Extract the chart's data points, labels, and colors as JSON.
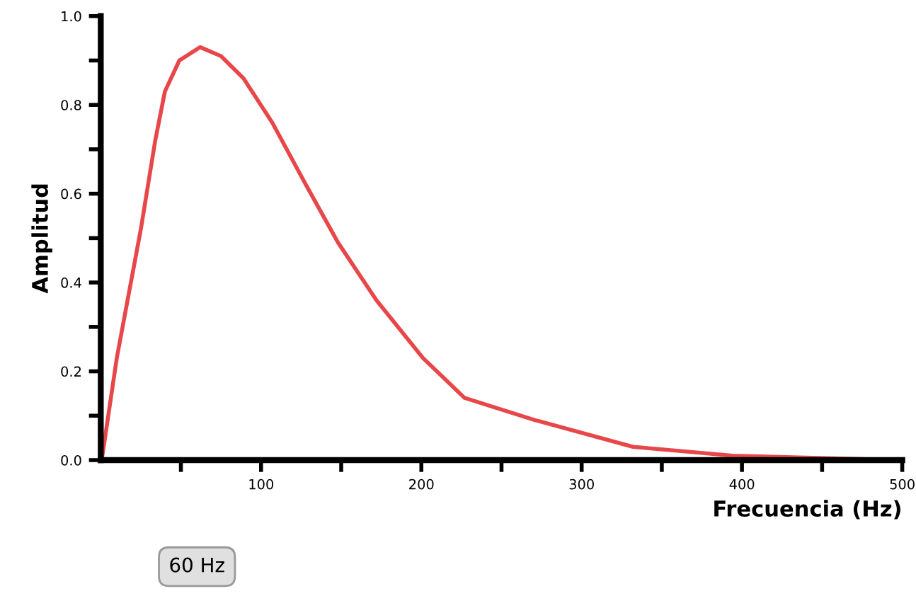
{
  "chart_data": {
    "type": "line",
    "xlabel": "Frecuencia (Hz)",
    "ylabel": "Amplitud",
    "x": [
      0,
      1,
      10,
      25,
      34,
      40,
      49,
      62,
      75,
      89,
      107,
      128,
      148,
      172,
      201,
      227,
      271,
      332,
      394,
      499
    ],
    "series": [
      {
        "color": "#e8474a",
        "values": [
          0,
          0.01,
          0.23,
          0.52,
          0.72,
          0.83,
          0.9,
          0.93,
          0.91,
          0.86,
          0.76,
          0.62,
          0.49,
          0.36,
          0.23,
          0.14,
          0.09,
          0.03,
          0.01,
          0
        ]
      }
    ],
    "xlim": [
      0,
      500
    ],
    "ylim": [
      0,
      1.0
    ],
    "xticks": [
      {
        "value": 50,
        "label": null
      },
      100,
      {
        "value": 150,
        "label": null
      },
      200,
      {
        "value": 250,
        "label": null
      },
      300,
      {
        "value": 350,
        "label": null
      },
      400,
      {
        "value": 450,
        "label": null
      },
      500
    ],
    "yticks": [
      {
        "value": 0,
        "label": "0.0"
      },
      {
        "value": 0.1,
        "label": null
      },
      0.2,
      {
        "value": 0.3,
        "label": null
      },
      0.4,
      {
        "value": 0.5,
        "label": null
      },
      0.6,
      {
        "value": 0.7,
        "label": null
      },
      0.8,
      {
        "value": 0.9,
        "label": null
      },
      {
        "value": 1.0,
        "label": "1.0"
      }
    ],
    "annotations": [
      "60 Hz"
    ],
    "grid": false,
    "marker": "none",
    "line_style": "solid"
  }
}
